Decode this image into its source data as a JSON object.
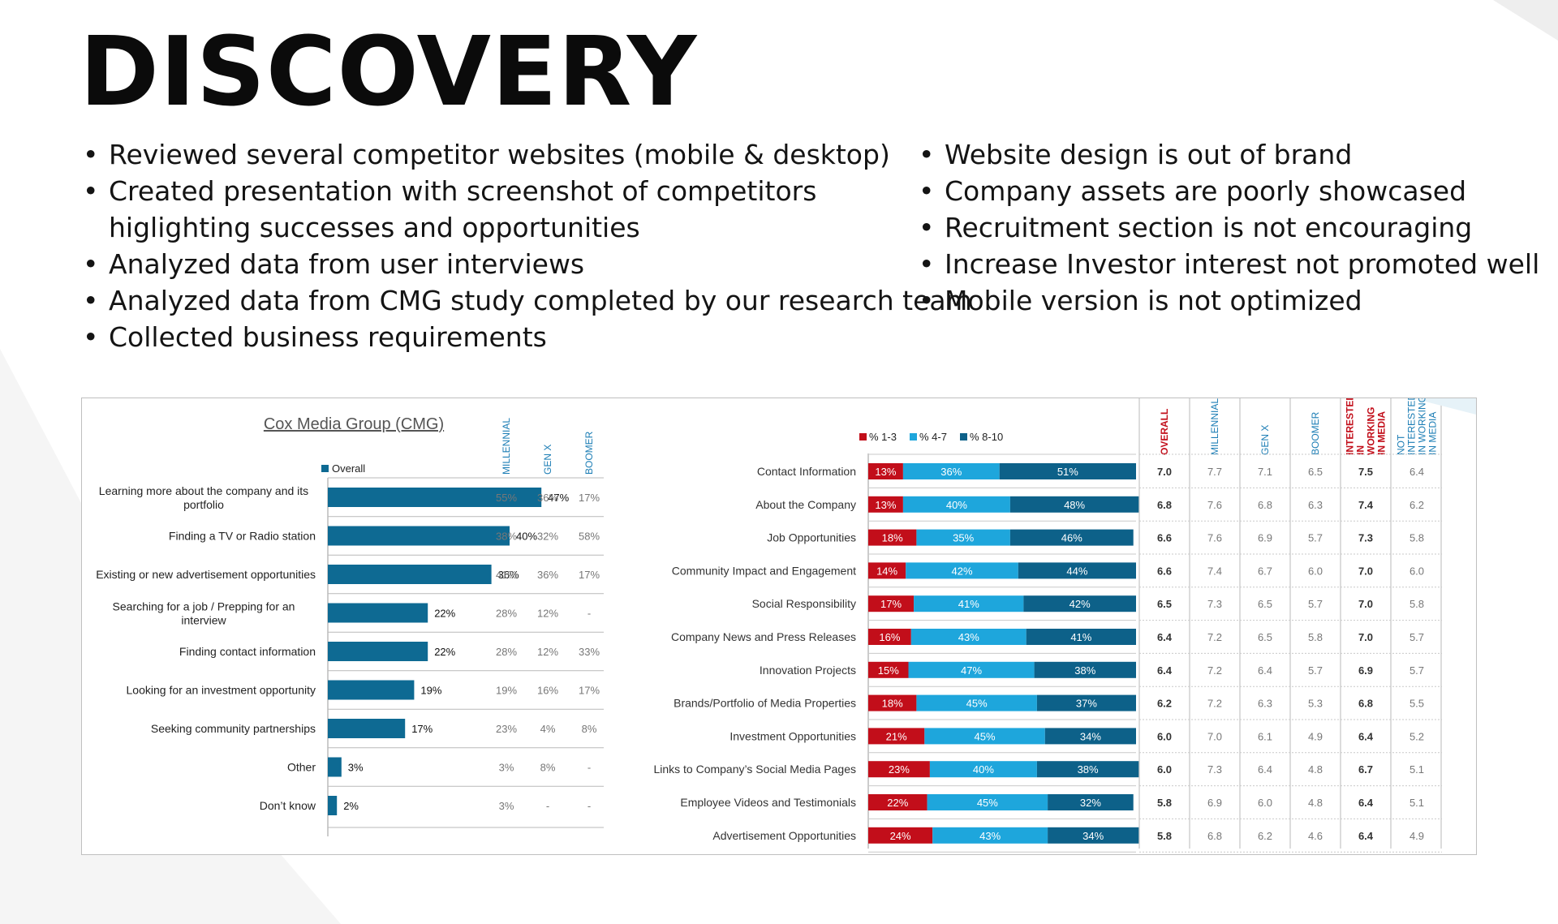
{
  "slide": {
    "title": "DISCOVERY",
    "bullets_left": [
      [
        "Reviewed several competitor websites (mobile & desktop)"
      ],
      [
        "Created presentation with screenshot of competitors",
        "higlighting successes and opportunities"
      ],
      [
        "Analyzed data from user interviews"
      ],
      [
        "Analyzed data from CMG study completed by our research team"
      ],
      [
        "Collected business requirements"
      ]
    ],
    "bullets_right": [
      [
        "Website design is out of brand"
      ],
      [
        "Company assets are poorly showcased"
      ],
      [
        "Recruitment section is not encouraging"
      ],
      [
        "Increase Investor interest not promoted well"
      ],
      [
        "Mobile version is not optimized"
      ]
    ]
  },
  "chart_data": [
    {
      "type": "bar",
      "orientation": "horizontal",
      "title": "Cox Media Group (CMG)",
      "legend": [
        "Overall"
      ],
      "categories": [
        [
          "Learning more about the company and its",
          "portfolio"
        ],
        [
          "Finding a TV or Radio station"
        ],
        [
          "Existing or new advertisement opportunities"
        ],
        [
          "Searching for a job / Prepping for an",
          "interview"
        ],
        [
          "Finding contact information"
        ],
        [
          "Looking for an investment opportunity"
        ],
        [
          "Seeking community partnerships"
        ],
        [
          "Other"
        ],
        [
          "Don’t know"
        ]
      ],
      "series": [
        {
          "name": "Overall",
          "values": [
            47,
            40,
            36,
            22,
            22,
            19,
            17,
            3,
            2
          ]
        }
      ],
      "unit": "%",
      "table_columns": [
        "MILLENNIAL",
        "GEN X",
        "BOOMER"
      ],
      "table_rows": [
        [
          "55%",
          "36%",
          "17%"
        ],
        [
          "38%",
          "32%",
          "58%"
        ],
        [
          "41%",
          "36%",
          "17%"
        ],
        [
          "28%",
          "12%",
          "-"
        ],
        [
          "28%",
          "12%",
          "33%"
        ],
        [
          "19%",
          "16%",
          "17%"
        ],
        [
          "23%",
          "4%",
          "8%"
        ],
        [
          "3%",
          "8%",
          "-"
        ],
        [
          "3%",
          "-",
          "-"
        ]
      ],
      "colors": {
        "bar": "#0e6a93",
        "header": "#1b7db5"
      }
    },
    {
      "type": "bar",
      "orientation": "horizontal",
      "stacked": true,
      "legend": [
        "% 1-3",
        "% 4-7",
        "% 8-10"
      ],
      "categories": [
        "Contact Information",
        "About the Company",
        "Job Opportunities",
        "Community Impact and Engagement",
        "Social Responsibility",
        "Company News and Press Releases",
        "Innovation Projects",
        "Brands/Portfolio of Media Properties",
        "Investment Opportunities",
        "Links to Company’s Social Media Pages",
        "Employee Videos and Testimonials",
        "Advertisement Opportunities"
      ],
      "series": [
        {
          "name": "% 1-3",
          "color": "#c20e1a",
          "values": [
            13,
            13,
            18,
            14,
            17,
            16,
            15,
            18,
            21,
            23,
            22,
            24
          ]
        },
        {
          "name": "% 4-7",
          "color": "#1ea6dc",
          "values": [
            36,
            40,
            35,
            42,
            41,
            43,
            47,
            45,
            45,
            40,
            45,
            43
          ]
        },
        {
          "name": "% 8-10",
          "color": "#0d6189",
          "values": [
            51,
            48,
            46,
            44,
            42,
            41,
            38,
            37,
            34,
            38,
            32,
            34
          ]
        }
      ],
      "unit": "%",
      "table_columns": [
        {
          "lines": [
            "OVERALL"
          ],
          "color": "#c20e1a",
          "bold": true
        },
        {
          "lines": [
            "MILLENNIAL"
          ],
          "color": "#1b7db5",
          "bold": false
        },
        {
          "lines": [
            "GEN X"
          ],
          "color": "#1b7db5",
          "bold": false
        },
        {
          "lines": [
            "BOOMER"
          ],
          "color": "#1b7db5",
          "bold": false
        },
        {
          "lines": [
            "INTERESTED",
            "IN",
            "WORKING",
            "IN MEDIA"
          ],
          "color": "#c20e1a",
          "bold": true
        },
        {
          "lines": [
            "NOT",
            "INTERESTED",
            "IN WORKING",
            "IN MEDIA"
          ],
          "color": "#1b7db5",
          "bold": false
        }
      ],
      "table_rows": [
        [
          "7.0",
          "7.7",
          "7.1",
          "6.5",
          "7.5",
          "6.4"
        ],
        [
          "6.8",
          "7.6",
          "6.8",
          "6.3",
          "7.4",
          "6.2"
        ],
        [
          "6.6",
          "7.6",
          "6.9",
          "5.7",
          "7.3",
          "5.8"
        ],
        [
          "6.6",
          "7.4",
          "6.7",
          "6.0",
          "7.0",
          "6.0"
        ],
        [
          "6.5",
          "7.3",
          "6.5",
          "5.7",
          "7.0",
          "5.8"
        ],
        [
          "6.4",
          "7.2",
          "6.5",
          "5.8",
          "7.0",
          "5.7"
        ],
        [
          "6.4",
          "7.2",
          "6.4",
          "5.7",
          "6.9",
          "5.7"
        ],
        [
          "6.2",
          "7.2",
          "6.3",
          "5.3",
          "6.8",
          "5.5"
        ],
        [
          "6.0",
          "7.0",
          "6.1",
          "4.9",
          "6.4",
          "5.2"
        ],
        [
          "6.0",
          "7.3",
          "6.4",
          "4.8",
          "6.7",
          "5.1"
        ],
        [
          "5.8",
          "6.9",
          "6.0",
          "4.8",
          "6.4",
          "5.1"
        ],
        [
          "5.8",
          "6.8",
          "6.2",
          "4.6",
          "6.4",
          "4.9"
        ]
      ]
    }
  ]
}
